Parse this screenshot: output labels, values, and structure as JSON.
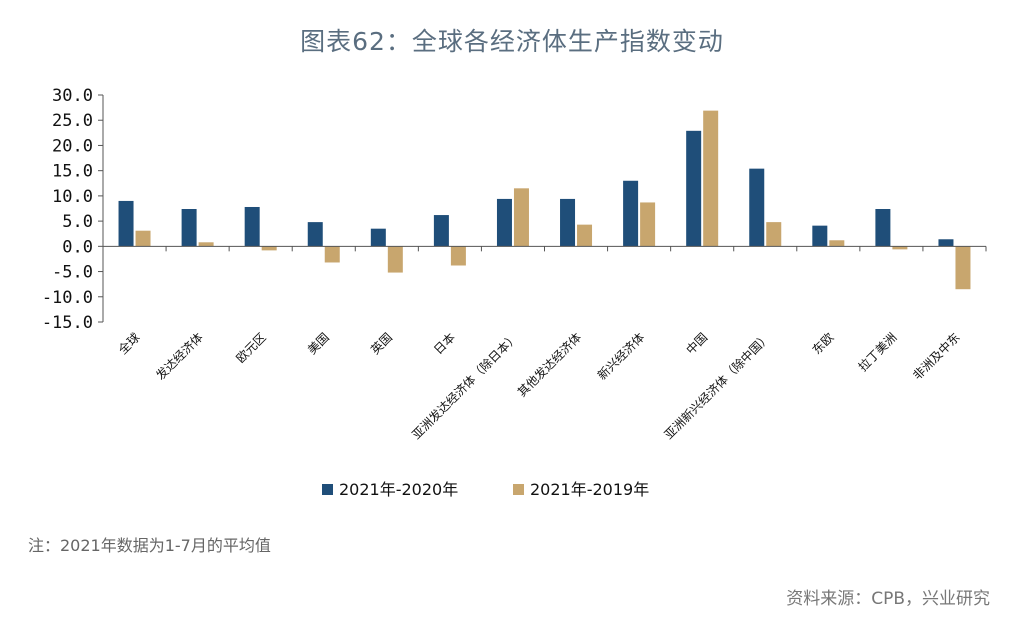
{
  "title": "图表62：全球各经济体生产指数变动",
  "note": "注：2021年数据为1-7月的平均值",
  "source": "资料来源：CPB，兴业研究",
  "colors": {
    "series1": "#1f4e79",
    "series2": "#c8a66e",
    "axis": "#555555"
  },
  "chart_data": {
    "type": "bar",
    "title": "图表62：全球各经济体生产指数变动",
    "categories": [
      "全球",
      "发达经济体",
      "欧元区",
      "美国",
      "英国",
      "日本",
      "亚洲发达经济体（除日本）",
      "其他发达经济体",
      "新兴经济体",
      "中国",
      "亚洲新兴经济体（除中国）",
      "东欧",
      "拉丁美洲",
      "非洲及中东"
    ],
    "series": [
      {
        "name": "2021年-2020年",
        "values": [
          9.0,
          7.4,
          7.8,
          4.8,
          3.5,
          6.2,
          9.4,
          9.4,
          13.0,
          22.9,
          15.4,
          4.1,
          7.4,
          1.4
        ]
      },
      {
        "name": "2021年-2019年",
        "values": [
          3.1,
          0.8,
          -0.8,
          -3.2,
          -5.2,
          -3.8,
          11.5,
          4.3,
          8.7,
          26.9,
          4.8,
          1.2,
          -0.6,
          -8.5
        ]
      }
    ],
    "ylim": [
      -15,
      30
    ],
    "yticks": [
      "30.0",
      "25.0",
      "20.0",
      "15.0",
      "10.0",
      "5.0",
      "0.0",
      "-5.0",
      "-10.0",
      "-15.0"
    ],
    "xlabel": "",
    "ylabel": "",
    "legend": "bottom-center",
    "grid": false
  }
}
